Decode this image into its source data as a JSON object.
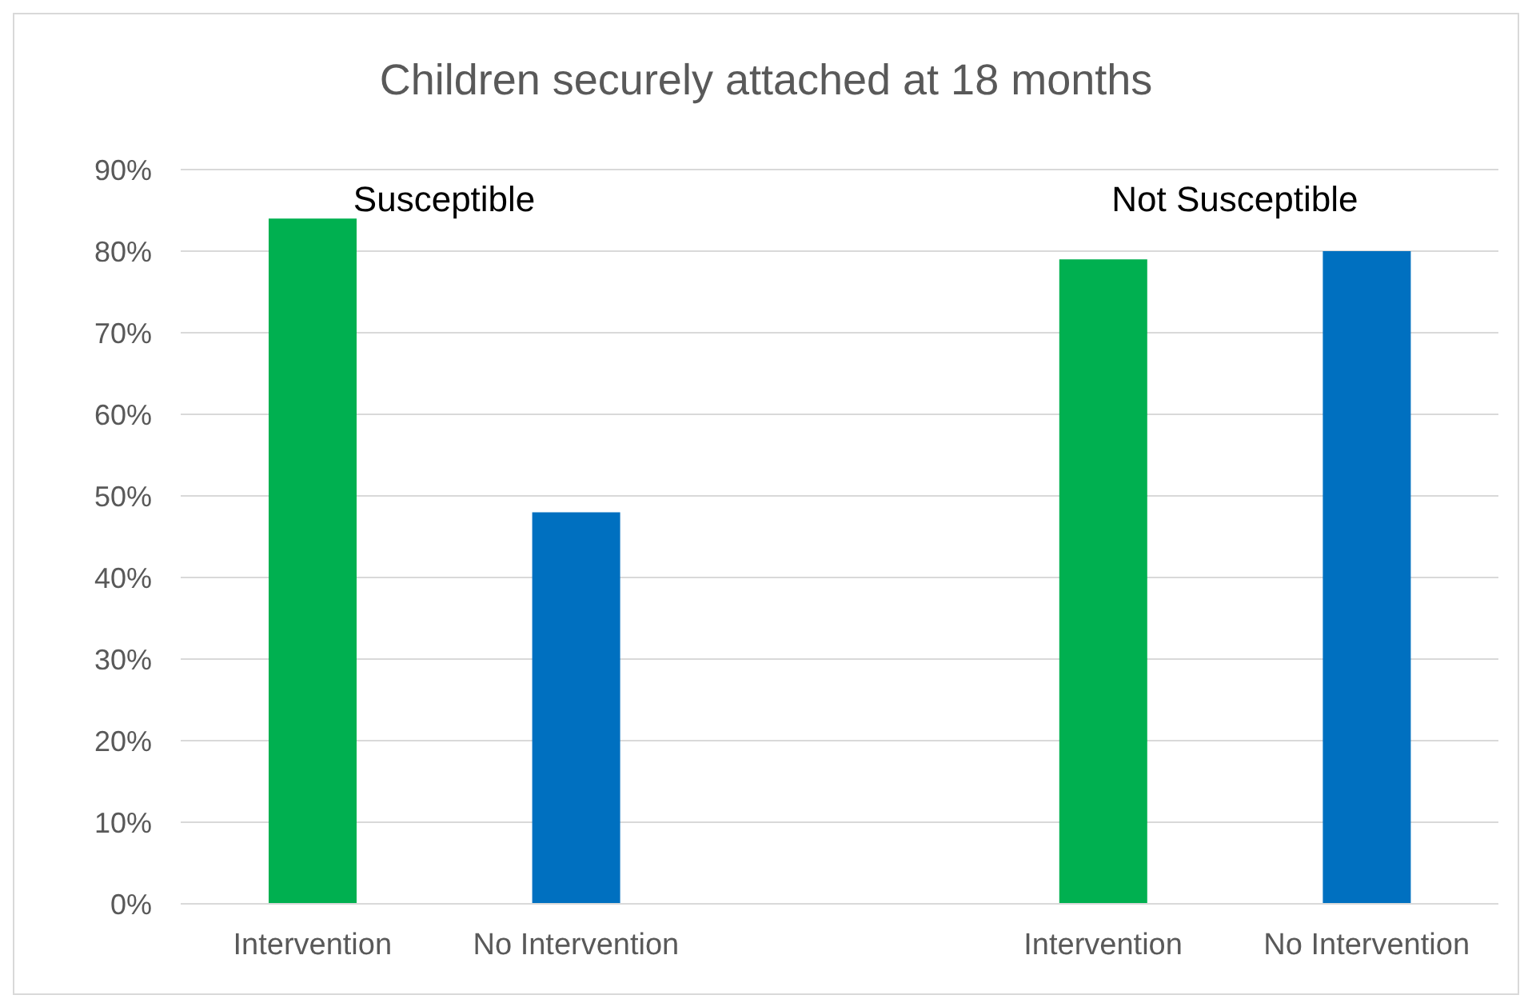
{
  "chart_data": {
    "type": "bar",
    "title": "Children securely attached at 18 months",
    "categories": [
      "Intervention",
      "No Intervention",
      null,
      "Intervention",
      "No Intervention"
    ],
    "values": [
      84,
      48,
      null,
      79,
      80
    ],
    "colors": [
      "#00b050",
      "#0070c0",
      null,
      "#00b050",
      "#0070c0"
    ],
    "ylim": [
      0,
      90
    ],
    "yticks": [
      {
        "value": 0,
        "label": "0%"
      },
      {
        "value": 10,
        "label": "10%"
      },
      {
        "value": 20,
        "label": "20%"
      },
      {
        "value": 30,
        "label": "30%"
      },
      {
        "value": 40,
        "label": "40%"
      },
      {
        "value": 50,
        "label": "50%"
      },
      {
        "value": 60,
        "label": "60%"
      },
      {
        "value": 70,
        "label": "70%"
      },
      {
        "value": 80,
        "label": "80%"
      },
      {
        "value": 90,
        "label": "90%"
      }
    ],
    "grid": "y",
    "annotations": [
      "Susceptible",
      "Not Susceptible"
    ]
  }
}
